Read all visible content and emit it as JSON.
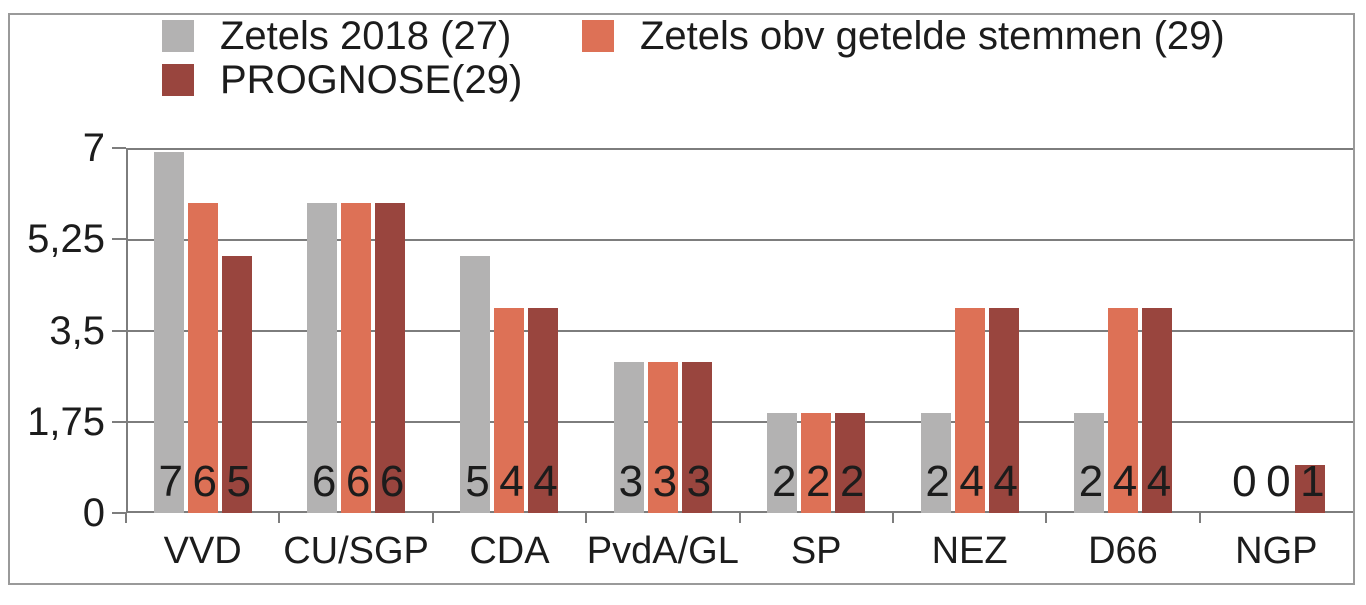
{
  "chart_data": {
    "type": "bar",
    "title": "",
    "categories": [
      "VVD",
      "CU/SGP",
      "CDA",
      "PvdA/GL",
      "SP",
      "NEZ",
      "D66",
      "NGP"
    ],
    "series": [
      {
        "name": "Zetels 2018 (27)",
        "color": "#b3b2b2",
        "seat_labels": [
          7,
          6,
          5,
          3,
          2,
          2,
          2,
          0
        ],
        "bar_heights": [
          6.93,
          5.95,
          4.92,
          2.9,
          1.92,
          1.92,
          1.92,
          0
        ]
      },
      {
        "name": "Zetels obv getelde stemmen (29)",
        "color": "#dd7156",
        "seat_labels": [
          6,
          6,
          4,
          3,
          2,
          4,
          4,
          0
        ],
        "bar_heights": [
          5.95,
          5.95,
          3.93,
          2.9,
          1.92,
          3.93,
          3.93,
          0
        ]
      },
      {
        "name": "PROGNOSE(29)",
        "color": "#99453e",
        "seat_labels": [
          5,
          6,
          4,
          3,
          2,
          4,
          4,
          1
        ],
        "bar_heights": [
          4.93,
          5.95,
          3.93,
          2.9,
          1.92,
          3.93,
          3.93,
          0.92
        ]
      }
    ],
    "y_axis": {
      "min": 0,
      "max": 7,
      "tick_step": 1.75,
      "ticks": [
        "7",
        "5,25",
        "3,5",
        "1,75",
        "0"
      ],
      "grid": true
    },
    "legend_position": "top",
    "colors": {
      "grid": "#7d7d7d",
      "frame": "#9a9a9a",
      "text": "#1c1c1c",
      "background": "#ffffff"
    }
  }
}
